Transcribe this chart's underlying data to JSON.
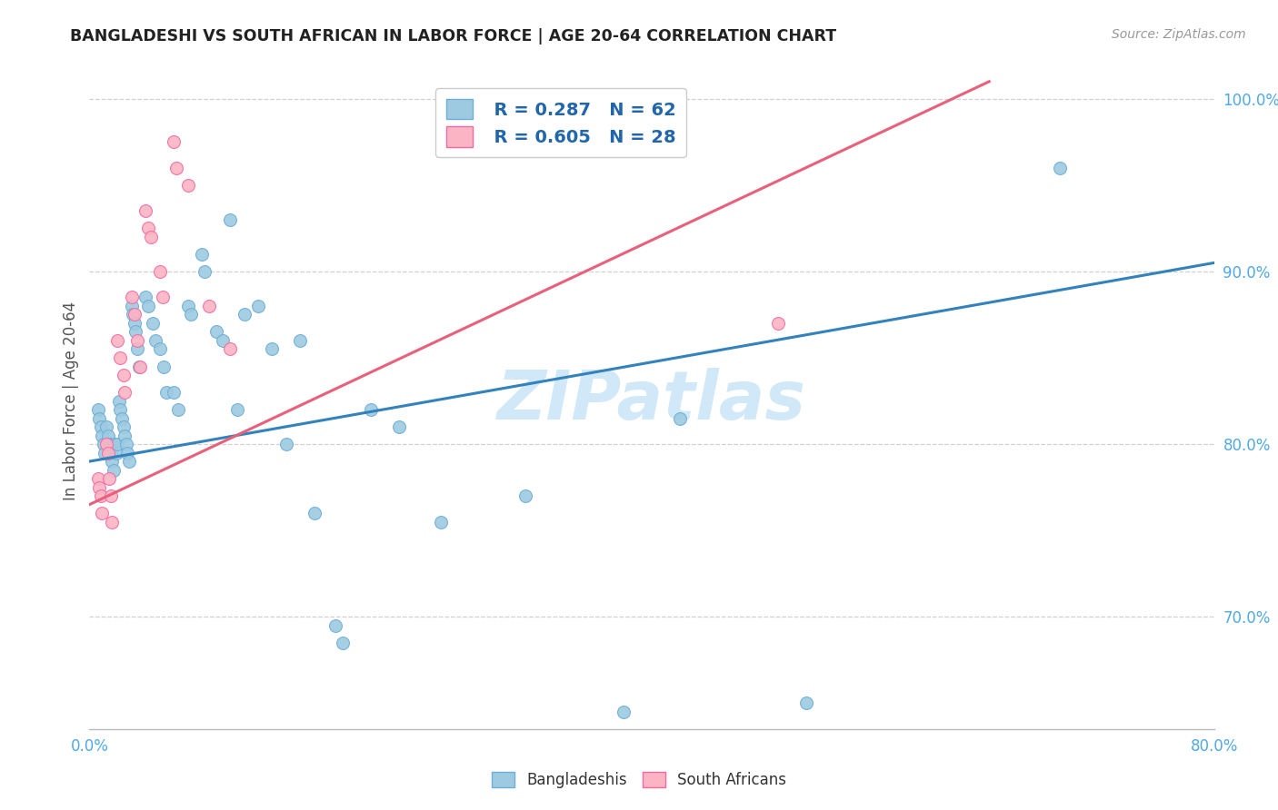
{
  "title": "BANGLADESHI VS SOUTH AFRICAN IN LABOR FORCE | AGE 20-64 CORRELATION CHART",
  "source": "Source: ZipAtlas.com",
  "ylabel": "In Labor Force | Age 20-64",
  "xlim": [
    0.0,
    0.8
  ],
  "ylim": [
    0.635,
    1.015
  ],
  "xticks": [
    0.0,
    0.1,
    0.2,
    0.3,
    0.4,
    0.5,
    0.6,
    0.7,
    0.8
  ],
  "xticklabels": [
    "0.0%",
    "",
    "",
    "",
    "",
    "",
    "",
    "",
    "80.0%"
  ],
  "yticks": [
    0.7,
    0.8,
    0.9,
    1.0
  ],
  "yticklabels": [
    "70.0%",
    "80.0%",
    "90.0%",
    "100.0%"
  ],
  "blue_color": "#9ecae1",
  "blue_edge_color": "#6baed6",
  "pink_color": "#fbb4c4",
  "pink_edge_color": "#f768a1",
  "blue_line_color": "#3182bd",
  "pink_line_color": "#e8607a",
  "watermark_text": "ZIPatlas",
  "watermark_color": "#d0e8f8",
  "blue_R": 0.287,
  "blue_N": 62,
  "pink_R": 0.605,
  "pink_N": 28,
  "blue_scatter_x": [
    0.006,
    0.007,
    0.008,
    0.009,
    0.01,
    0.011,
    0.012,
    0.013,
    0.014,
    0.015,
    0.016,
    0.017,
    0.018,
    0.019,
    0.02,
    0.021,
    0.022,
    0.023,
    0.024,
    0.025,
    0.026,
    0.027,
    0.028,
    0.03,
    0.031,
    0.032,
    0.033,
    0.034,
    0.035,
    0.04,
    0.042,
    0.045,
    0.047,
    0.05,
    0.053,
    0.055,
    0.06,
    0.063,
    0.07,
    0.072,
    0.08,
    0.082,
    0.09,
    0.095,
    0.1,
    0.105,
    0.11,
    0.12,
    0.13,
    0.14,
    0.15,
    0.16,
    0.175,
    0.18,
    0.2,
    0.22,
    0.25,
    0.31,
    0.38,
    0.42,
    0.51,
    0.69
  ],
  "blue_scatter_y": [
    0.82,
    0.815,
    0.81,
    0.805,
    0.8,
    0.795,
    0.81,
    0.805,
    0.8,
    0.795,
    0.79,
    0.785,
    0.8,
    0.795,
    0.8,
    0.825,
    0.82,
    0.815,
    0.81,
    0.805,
    0.8,
    0.795,
    0.79,
    0.88,
    0.875,
    0.87,
    0.865,
    0.855,
    0.845,
    0.885,
    0.88,
    0.87,
    0.86,
    0.855,
    0.845,
    0.83,
    0.83,
    0.82,
    0.88,
    0.875,
    0.91,
    0.9,
    0.865,
    0.86,
    0.93,
    0.82,
    0.875,
    0.88,
    0.855,
    0.8,
    0.86,
    0.76,
    0.695,
    0.685,
    0.82,
    0.81,
    0.755,
    0.77,
    0.645,
    0.815,
    0.65,
    0.96
  ],
  "pink_scatter_x": [
    0.006,
    0.007,
    0.008,
    0.009,
    0.012,
    0.013,
    0.014,
    0.015,
    0.016,
    0.02,
    0.022,
    0.024,
    0.025,
    0.03,
    0.032,
    0.034,
    0.036,
    0.04,
    0.042,
    0.044,
    0.05,
    0.052,
    0.06,
    0.062,
    0.07,
    0.085,
    0.1,
    0.49
  ],
  "pink_scatter_y": [
    0.78,
    0.775,
    0.77,
    0.76,
    0.8,
    0.795,
    0.78,
    0.77,
    0.755,
    0.86,
    0.85,
    0.84,
    0.83,
    0.885,
    0.875,
    0.86,
    0.845,
    0.935,
    0.925,
    0.92,
    0.9,
    0.885,
    0.975,
    0.96,
    0.95,
    0.88,
    0.855,
    0.87
  ],
  "blue_trend_x": [
    0.0,
    0.8
  ],
  "blue_trend_y": [
    0.79,
    0.905
  ],
  "pink_trend_x": [
    0.0,
    0.64
  ],
  "pink_trend_y": [
    0.765,
    1.01
  ],
  "background_color": "#ffffff",
  "grid_color": "#d0d0d0",
  "legend_blue_text_color": "#2166ac",
  "legend_pink_text_color": "#d6204a",
  "axis_tick_color": "#4fa8e8",
  "spine_color": "#bbbbbb"
}
